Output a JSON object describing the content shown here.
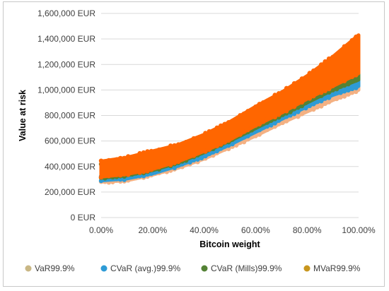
{
  "chart_data": {
    "type": "scatter",
    "xlabel": "Bitcoin weight",
    "ylabel": "Value at risk",
    "x_ticks": [
      "0.00%",
      "20.00%",
      "40.00%",
      "60.00%",
      "80.00%",
      "100.00%"
    ],
    "y_ticks": [
      "0 EUR",
      "200,000 EUR",
      "400,000 EUR",
      "600,000 EUR",
      "800,000 EUR",
      "1,000,000 EUR",
      "1,200,000 EUR",
      "1,400,000 EUR",
      "1,600,000 EUR"
    ],
    "xlim": [
      0,
      100
    ],
    "ylim": [
      0,
      1600000
    ],
    "grid": "horizontal",
    "legend_position": "bottom",
    "series": [
      {
        "name": "VaR99.9%",
        "color": "#f4b183",
        "x": [
          0,
          10,
          20,
          30,
          40,
          50,
          60,
          70,
          80,
          90,
          100
        ],
        "y_lower": [
          280000,
          290000,
          335000,
          390000,
          460000,
          550000,
          640000,
          740000,
          830000,
          920000,
          1000000
        ],
        "y_upper": [
          310000,
          320000,
          360000,
          420000,
          490000,
          590000,
          680000,
          790000,
          890000,
          980000,
          1030000
        ]
      },
      {
        "name": "CVaR (avg.)99.9%",
        "color": "#2e9bd6",
        "x": [
          0,
          10,
          20,
          30,
          40,
          50,
          60,
          70,
          80,
          90,
          100
        ],
        "y_lower": [
          290000,
          305000,
          345000,
          405000,
          480000,
          570000,
          670000,
          770000,
          870000,
          960000,
          1030000
        ],
        "y_upper": [
          320000,
          340000,
          380000,
          445000,
          520000,
          620000,
          720000,
          830000,
          950000,
          1060000,
          1130000
        ]
      },
      {
        "name": "CVaR (Mills)99.9%",
        "color": "#548235",
        "x": [
          0,
          10,
          20,
          30,
          40,
          50,
          60,
          70,
          80,
          90,
          100
        ],
        "y_lower": [
          310000,
          330000,
          370000,
          430000,
          510000,
          600000,
          700000,
          800000,
          900000,
          1000000,
          1080000
        ],
        "y_upper": [
          420000,
          450000,
          500000,
          560000,
          640000,
          730000,
          840000,
          950000,
          1070000,
          1180000,
          1310000
        ]
      },
      {
        "name": "MVaR99.9%",
        "color": "#ff6600",
        "x": [
          0,
          10,
          20,
          30,
          40,
          50,
          60,
          70,
          80,
          90,
          100
        ],
        "y_lower": [
          320000,
          340000,
          380000,
          440000,
          520000,
          610000,
          720000,
          820000,
          930000,
          1030000,
          1130000
        ],
        "y_upper": [
          440000,
          470000,
          520000,
          570000,
          650000,
          750000,
          870000,
          980000,
          1110000,
          1260000,
          1430000
        ]
      }
    ],
    "legend": [
      {
        "label": "VaR99.9%",
        "color": "#c9b785"
      },
      {
        "label": "CVaR (avg.)99.9%",
        "color": "#2e9bd6"
      },
      {
        "label": "CVaR (Mills)99.9%",
        "color": "#548235"
      },
      {
        "label": "MVaR99.9%",
        "color": "#c8961e"
      }
    ]
  }
}
